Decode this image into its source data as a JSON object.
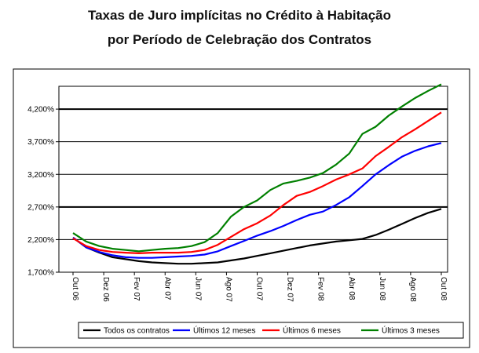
{
  "chart_data": {
    "type": "line",
    "title": "Taxas de Juro implícitas no Crédito à Habitação",
    "subtitle": "por Período de Celebração dos Contratos",
    "xlabel": "",
    "ylabel": "",
    "x_tick_labels": [
      "Out 06",
      "Dez 06",
      "Fev 07",
      "Abr 07",
      "Jun 07",
      "Ago 07",
      "Out 07",
      "Dez 07",
      "Fev 08",
      "Abr 08",
      "Jun 08",
      "Ago 08",
      "Out 08"
    ],
    "y_tick_labels": [
      "1,700%",
      "2,200%",
      "2,700%",
      "3,200%",
      "3,700%",
      "4,200%"
    ],
    "ylim": [
      1.7,
      4.55
    ],
    "major_gridlines": [
      2.7,
      4.2
    ],
    "grid": true,
    "legend_position": "bottom",
    "series": [
      {
        "name": "Todos os contratos",
        "color": "#000000",
        "values": [
          2.23,
          2.08,
          2.0,
          1.93,
          1.9,
          1.87,
          1.85,
          1.84,
          1.83,
          1.83,
          1.84,
          1.85,
          1.88,
          1.91,
          1.95,
          1.99,
          2.03,
          2.07,
          2.11,
          2.14,
          2.17,
          2.19,
          2.21,
          2.27,
          2.35,
          2.44,
          2.53,
          2.61,
          2.67
        ]
      },
      {
        "name": "Últimos 12 meses",
        "color": "#0000ff",
        "values": [
          2.23,
          2.08,
          2.01,
          1.96,
          1.93,
          1.92,
          1.92,
          1.93,
          1.94,
          1.95,
          1.97,
          2.02,
          2.1,
          2.18,
          2.26,
          2.33,
          2.41,
          2.5,
          2.58,
          2.63,
          2.73,
          2.85,
          3.02,
          3.2,
          3.34,
          3.47,
          3.56,
          3.63,
          3.68
        ]
      },
      {
        "name": "Últimos 6 meses",
        "color": "#ff0000",
        "values": [
          2.22,
          2.1,
          2.04,
          2.01,
          2.0,
          1.99,
          2.0,
          2.0,
          2.0,
          2.01,
          2.04,
          2.12,
          2.24,
          2.36,
          2.45,
          2.57,
          2.73,
          2.87,
          2.93,
          3.02,
          3.12,
          3.2,
          3.29,
          3.48,
          3.62,
          3.77,
          3.89,
          4.02,
          4.15
        ]
      },
      {
        "name": "Últimos 3 meses",
        "color": "#008000",
        "values": [
          2.3,
          2.17,
          2.1,
          2.06,
          2.04,
          2.02,
          2.04,
          2.06,
          2.07,
          2.1,
          2.16,
          2.3,
          2.55,
          2.7,
          2.8,
          2.96,
          3.06,
          3.1,
          3.15,
          3.22,
          3.35,
          3.52,
          3.82,
          3.93,
          4.1,
          4.24,
          4.37,
          4.48,
          4.58
        ]
      }
    ]
  }
}
